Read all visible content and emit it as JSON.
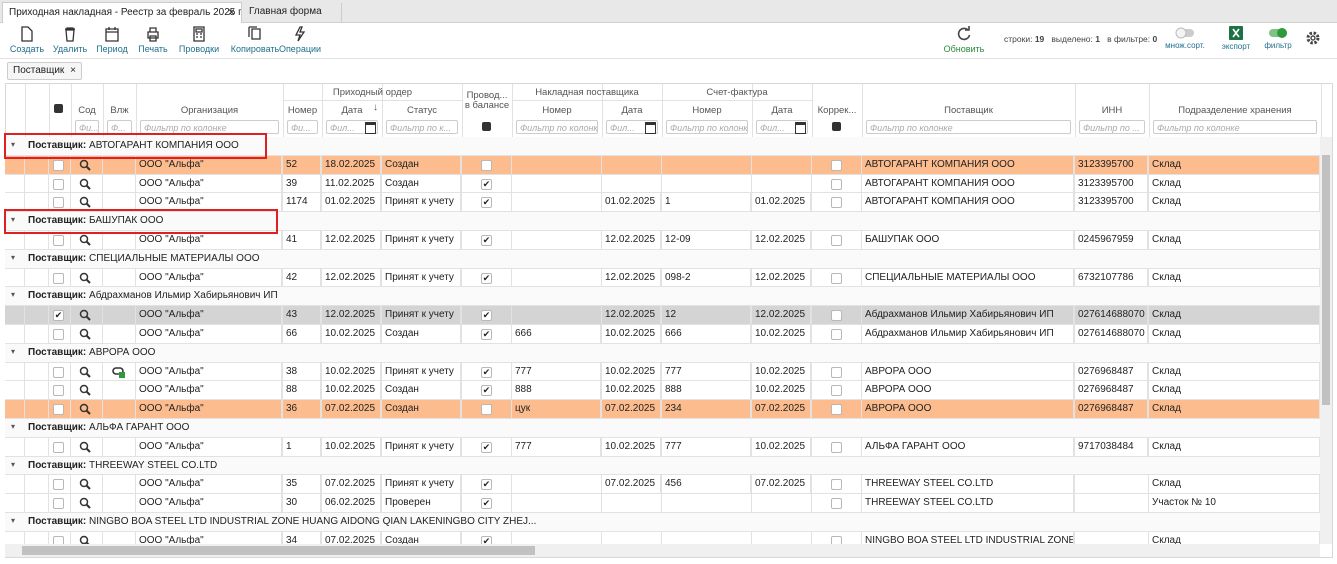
{
  "tabs": [
    {
      "title": "Приходная накладная - Реестр за февраль 2025 г.",
      "close": "×"
    },
    {
      "title": "Главная форма"
    }
  ],
  "toolbar": {
    "buttons": [
      "Создать",
      "Удалить",
      "Период",
      "Печать",
      "Проводки",
      "Копировать",
      "Операции"
    ],
    "refresh": "Обновить",
    "rows_label": "строки:",
    "rows_value": "19",
    "selected_label": "выделено:",
    "selected_value": "1",
    "filtered_label": "в фильтре:",
    "filtered_value": "0",
    "multisort": "множ.сорт.",
    "export": "экспорт",
    "filter": "фильтр"
  },
  "grouping": {
    "chip": "Поставщик",
    "close": "×"
  },
  "grid": {
    "column_groups": [
      {
        "title": "Приходный ордер"
      },
      {
        "title": "Накладная поставщика"
      },
      {
        "title": "Счет-фактура"
      }
    ],
    "columns": [
      {
        "title": "Сод",
        "filter": "Фи..."
      },
      {
        "title": "Влж",
        "filter": "Ф..."
      },
      {
        "title": "Организация",
        "filter": "Фильтр по колонке"
      },
      {
        "title": "Номер",
        "filter": "Фи..."
      },
      {
        "title": "Дата",
        "filter": "Фил..."
      },
      {
        "title": "Статус",
        "filter": "Фильтр по к..."
      },
      {
        "title": "Провод...",
        "title2": "в балансе"
      },
      {
        "title": "Номер",
        "filter": "Фильтр по колонке"
      },
      {
        "title": "Дата",
        "filter": "Фил..."
      },
      {
        "title": "Номер",
        "filter": "Фильтр по колонке"
      },
      {
        "title": "Дата",
        "filter": "Фил..."
      },
      {
        "title": "Коррек..."
      },
      {
        "title": "Поставщик",
        "filter": "Фильтр по колонке"
      },
      {
        "title": "ИНН",
        "filter": "Фильтр по ..."
      },
      {
        "title": "Подразделение хранения",
        "filter": "Фильтр по колонке"
      }
    ],
    "group_label": "Поставщик:",
    "groups": [
      {
        "name": "АВТОГАРАНТ КОМПАНИЯ ООО",
        "highlighted": true,
        "rows": [
          {
            "org": "ООО \"Альфа\"",
            "num": "52",
            "date": "18.02.2025",
            "status": "Создан",
            "posted": false,
            "supplier": "АВТОГАРАНТ КОМПАНИЯ ООО",
            "inn": "3123395700",
            "dept": "Склад",
            "row_color": "#fcbc8e"
          },
          {
            "org": "ООО \"Альфа\"",
            "num": "39",
            "date": "11.02.2025",
            "status": "Создан",
            "posted": true,
            "supplier": "АВТОГАРАНТ КОМПАНИЯ ООО",
            "inn": "3123395700",
            "dept": "Склад"
          },
          {
            "org": "ООО \"Альфа\"",
            "num": "1174",
            "date": "01.02.2025",
            "status": "Принят к учету",
            "posted": true,
            "inv_date": "01.02.2025",
            "sf_num": "1",
            "sf_date": "01.02.2025",
            "supplier": "АВТОГАРАНТ КОМПАНИЯ ООО",
            "inn": "3123395700",
            "dept": "Склад"
          }
        ]
      },
      {
        "name": "БАШУПАК ООО",
        "highlighted": true,
        "rows": [
          {
            "org": "ООО \"Альфа\"",
            "num": "41",
            "date": "12.02.2025",
            "status": "Принят к учету",
            "posted": true,
            "inv_date": "12.02.2025",
            "sf_num": "12-09",
            "sf_date": "12.02.2025",
            "supplier": "БАШУПАК ООО",
            "inn": "0245967959",
            "dept": "Склад"
          }
        ]
      },
      {
        "name": "СПЕЦИАЛЬНЫЕ МАТЕРИАЛЫ ООО",
        "rows": [
          {
            "org": "ООО \"Альфа\"",
            "num": "42",
            "date": "12.02.2025",
            "status": "Принят к учету",
            "posted": true,
            "inv_date": "12.02.2025",
            "sf_num": "098-2",
            "sf_date": "12.02.2025",
            "supplier": "СПЕЦИАЛЬНЫЕ МАТЕРИАЛЫ ООО",
            "inn": "6732107786",
            "dept": "Склад"
          }
        ]
      },
      {
        "name": "Абдрахманов Ильмир Хабирьянович ИП",
        "rows": [
          {
            "org": "ООО \"Альфа\"",
            "num": "43",
            "date": "12.02.2025",
            "status": "Принят к учету",
            "posted": true,
            "inv_date": "12.02.2025",
            "sf_num": "12",
            "sf_date": "12.02.2025",
            "supplier": "Абдрахманов Ильмир Хабирьянович ИП",
            "inn": "027614688070",
            "dept": "Склад",
            "checked": true,
            "row_color": "#d4d4d4"
          },
          {
            "org": "ООО \"Альфа\"",
            "num": "66",
            "date": "10.02.2025",
            "status": "Создан",
            "posted": true,
            "inv_num": "666",
            "inv_date": "10.02.2025",
            "sf_num": "666",
            "sf_date": "10.02.2025",
            "supplier": "Абдрахманов Ильмир Хабирьянович ИП",
            "inn": "027614688070",
            "dept": "Склад"
          }
        ]
      },
      {
        "name": "АВРОРА ООО",
        "rows": [
          {
            "org": "ООО \"Альфа\"",
            "num": "38",
            "date": "10.02.2025",
            "status": "Принят к учету",
            "posted": true,
            "inv_num": "777",
            "inv_date": "10.02.2025",
            "sf_num": "777",
            "sf_date": "10.02.2025",
            "supplier": "АВРОРА ООО",
            "inn": "0276968487",
            "dept": "Склад",
            "attachment": true
          },
          {
            "org": "ООО \"Альфа\"",
            "num": "88",
            "date": "10.02.2025",
            "status": "Создан",
            "posted": true,
            "inv_num": "888",
            "inv_date": "10.02.2025",
            "sf_num": "888",
            "sf_date": "10.02.2025",
            "supplier": "АВРОРА ООО",
            "inn": "0276968487",
            "dept": "Склад"
          },
          {
            "org": "ООО \"Альфа\"",
            "num": "36",
            "date": "07.02.2025",
            "status": "Создан",
            "posted": false,
            "inv_num": "цук",
            "inv_date": "07.02.2025",
            "sf_num": "234",
            "sf_date": "07.02.2025",
            "supplier": "АВРОРА ООО",
            "inn": "0276968487",
            "dept": "Склад",
            "row_color": "#fcbc8e"
          }
        ]
      },
      {
        "name": "АЛЬФА ГАРАНТ ООО",
        "rows": [
          {
            "org": "ООО \"Альфа\"",
            "num": "1",
            "date": "10.02.2025",
            "status": "Принят к учету",
            "posted": true,
            "inv_num": "777",
            "inv_date": "10.02.2025",
            "sf_num": "777",
            "sf_date": "10.02.2025",
            "supplier": "АЛЬФА ГАРАНТ ООО",
            "inn": "9717038484",
            "dept": "Склад"
          }
        ]
      },
      {
        "name": "THREEWAY STEEL CO.LTD",
        "rows": [
          {
            "org": "ООО \"Альфа\"",
            "num": "35",
            "date": "07.02.2025",
            "status": "Принят к учету",
            "posted": true,
            "inv_date": "07.02.2025",
            "sf_num": "456",
            "sf_date": "07.02.2025",
            "supplier": "THREEWAY STEEL CO.LTD",
            "dept": "Склад"
          },
          {
            "org": "ООО \"Альфа\"",
            "num": "30",
            "date": "06.02.2025",
            "status": "Проверен",
            "posted": true,
            "supplier": "THREEWAY STEEL CO.LTD",
            "dept": "Участок № 10"
          }
        ]
      },
      {
        "name": "NINGBO BOA STEEL LTD INDUSTRIAL ZONE HUANG AIDONG QIAN LAKENINGBO CITY ZHEJ...",
        "rows": [
          {
            "org": "ООО \"Альфа\"",
            "num": "34",
            "date": "07.02.2025",
            "status": "Создан",
            "posted": true,
            "supplier": "NINGBO BOA STEEL LTD INDUSTRIAL ZONE HUA...",
            "dept": "Склад"
          }
        ]
      }
    ]
  }
}
